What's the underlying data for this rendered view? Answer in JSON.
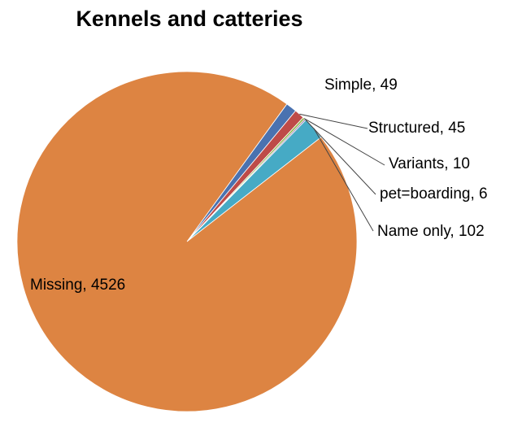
{
  "chart_data": {
    "type": "pie",
    "title": "Kennels and catteries",
    "categories": [
      "Simple",
      "Structured",
      "Variants",
      "pet=boarding",
      "Name only",
      "Missing"
    ],
    "values": [
      49,
      45,
      10,
      6,
      102,
      4526
    ],
    "labels": [
      "Simple, 49",
      "Structured, 45",
      "Variants, 10",
      "pet=boarding, 6",
      "Name only, 102",
      "Missing, 4526"
    ],
    "colors": [
      "#4A72B0",
      "#BE4B48",
      "#98B954",
      "#7E62A1",
      "#46AAC5",
      "#DD8442"
    ],
    "start_angle_deg": 36,
    "direction": "clockwise"
  }
}
